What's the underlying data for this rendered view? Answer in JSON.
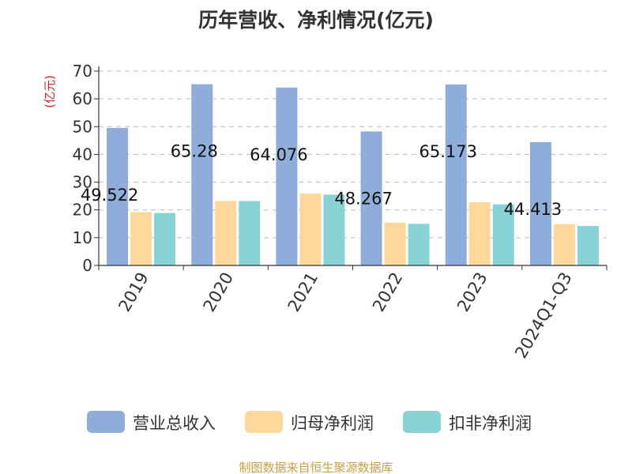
{
  "chart_data": {
    "type": "bar",
    "title": "历年营收、净利情况(亿元)",
    "ylabel": "(亿元)",
    "xlabel": "",
    "categories": [
      "2019",
      "2020",
      "2021",
      "2022",
      "2023",
      "2024Q1-Q3"
    ],
    "ylim": [
      0,
      70
    ],
    "yticks": [
      0,
      10,
      20,
      30,
      40,
      50,
      60,
      70
    ],
    "grid": true,
    "legend_position": "bottom",
    "series": [
      {
        "name": "营业总收入",
        "color": "#8eadda",
        "values": [
          49.522,
          65.28,
          64.076,
          48.267,
          65.173,
          44.413
        ],
        "labels": [
          "49.522",
          "65.28",
          "64.076",
          "48.267",
          "65.173",
          "44.413"
        ]
      },
      {
        "name": "归母净利润",
        "color": "#fdd89a",
        "values": [
          19.2,
          23.2,
          25.9,
          15.4,
          22.8,
          14.9
        ]
      },
      {
        "name": "扣非净利润",
        "color": "#87d3d6",
        "values": [
          18.9,
          23.2,
          25.5,
          15.0,
          22.0,
          14.2
        ]
      }
    ]
  },
  "source": "制图数据来自恒生聚源数据库"
}
